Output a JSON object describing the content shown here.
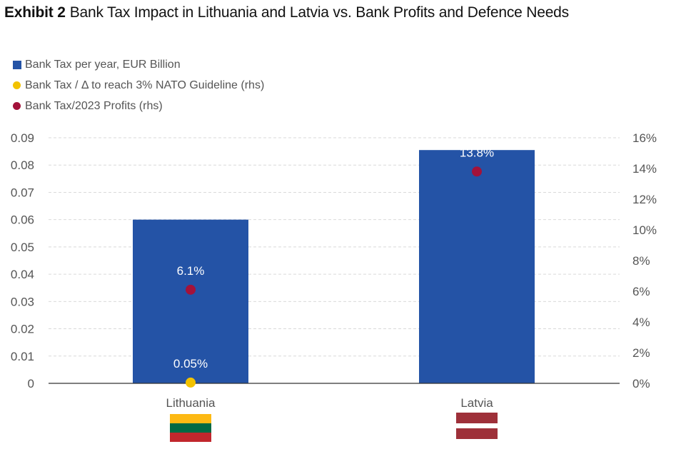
{
  "title": {
    "exhibit": "Exhibit 2",
    "text": "Bank Tax Impact in Lithuania and Latvia vs. Bank Profits and Defence Needs"
  },
  "colors": {
    "bar": "#2453a6",
    "nato_dot": "#f2c200",
    "profits_dot": "#a3123a",
    "grid": "#d9d9d9",
    "axis_text": "#555555",
    "data_label_on_bar": "#ffffff"
  },
  "chart_data": {
    "type": "bar",
    "categories": [
      "Lithuania",
      "Latvia"
    ],
    "series": [
      {
        "name": "Bank Tax per year, EUR Billion",
        "kind": "bar",
        "axis": "left",
        "values": [
          0.06,
          0.0855
        ]
      },
      {
        "name": "Bank Tax / Δ to reach 3% NATO Guideline (rhs)",
        "kind": "scatter",
        "axis": "right",
        "values": [
          0.05,
          null
        ],
        "labels": [
          "0.05%",
          ""
        ]
      },
      {
        "name": "Bank Tax/2023 Profits (rhs)",
        "kind": "scatter",
        "axis": "right",
        "values": [
          6.1,
          13.8
        ],
        "labels": [
          "6.1%",
          "13.8%"
        ]
      }
    ],
    "y_left": {
      "ylim": [
        0,
        0.09
      ],
      "ticks": [
        "0",
        "0.01",
        "0.02",
        "0.03",
        "0.04",
        "0.05",
        "0.06",
        "0.07",
        "0.08",
        "0.09"
      ]
    },
    "y_right": {
      "ylim": [
        0,
        16
      ],
      "ticks": [
        "0%",
        "2%",
        "4%",
        "6%",
        "8%",
        "10%",
        "12%",
        "14%",
        "16%"
      ]
    },
    "grid": true,
    "legend_position": "top-left",
    "flags": [
      "lithuania-flag",
      "latvia-flag"
    ],
    "flag_colors": {
      "lithuania": [
        "#fdb913",
        "#006a44",
        "#c1272d"
      ],
      "latvia": [
        "#9e3039",
        "#ffffff",
        "#9e3039"
      ]
    }
  }
}
